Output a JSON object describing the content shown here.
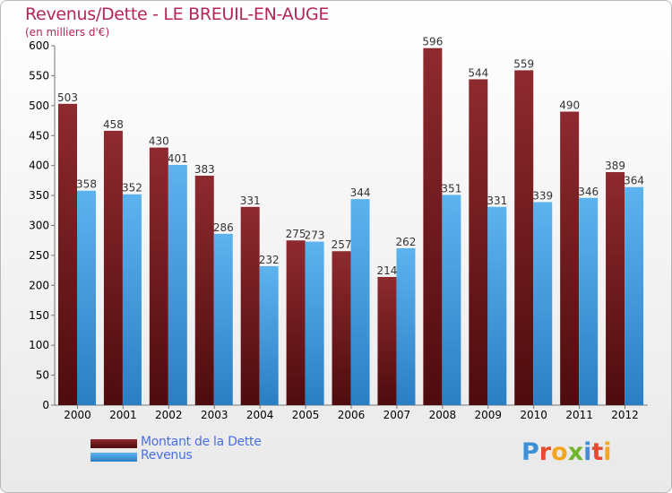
{
  "title": "Revenus/Dette - LE BREUIL-EN-AUGE",
  "subtitle": "(en milliers d'€)",
  "logo": {
    "text": [
      "P",
      "r",
      "o",
      "x",
      "i",
      "t",
      "i"
    ]
  },
  "colors": {
    "dette": "#7a1f22",
    "revenus": "#4aa3e4",
    "axis_text": "#000000",
    "label_text": "#333333"
  },
  "chart_data": {
    "type": "bar",
    "categories": [
      "2000",
      "2001",
      "2002",
      "2003",
      "2004",
      "2005",
      "2006",
      "2007",
      "2008",
      "2009",
      "2010",
      "2011",
      "2012"
    ],
    "series": [
      {
        "name": "Montant de la Dette",
        "values": [
          503,
          458,
          430,
          383,
          331,
          275,
          257,
          214,
          596,
          544,
          559,
          490,
          389
        ]
      },
      {
        "name": "Revenus",
        "values": [
          358,
          352,
          401,
          286,
          232,
          273,
          344,
          262,
          351,
          331,
          339,
          346,
          364
        ]
      }
    ],
    "yticks": [
      "0",
      "50",
      "100",
      "150",
      "200",
      "250",
      "300",
      "350",
      "400",
      "450",
      "500",
      "550",
      "600"
    ],
    "ylim": [
      0,
      600
    ],
    "grid": false,
    "legend_position": "bottom-left"
  }
}
